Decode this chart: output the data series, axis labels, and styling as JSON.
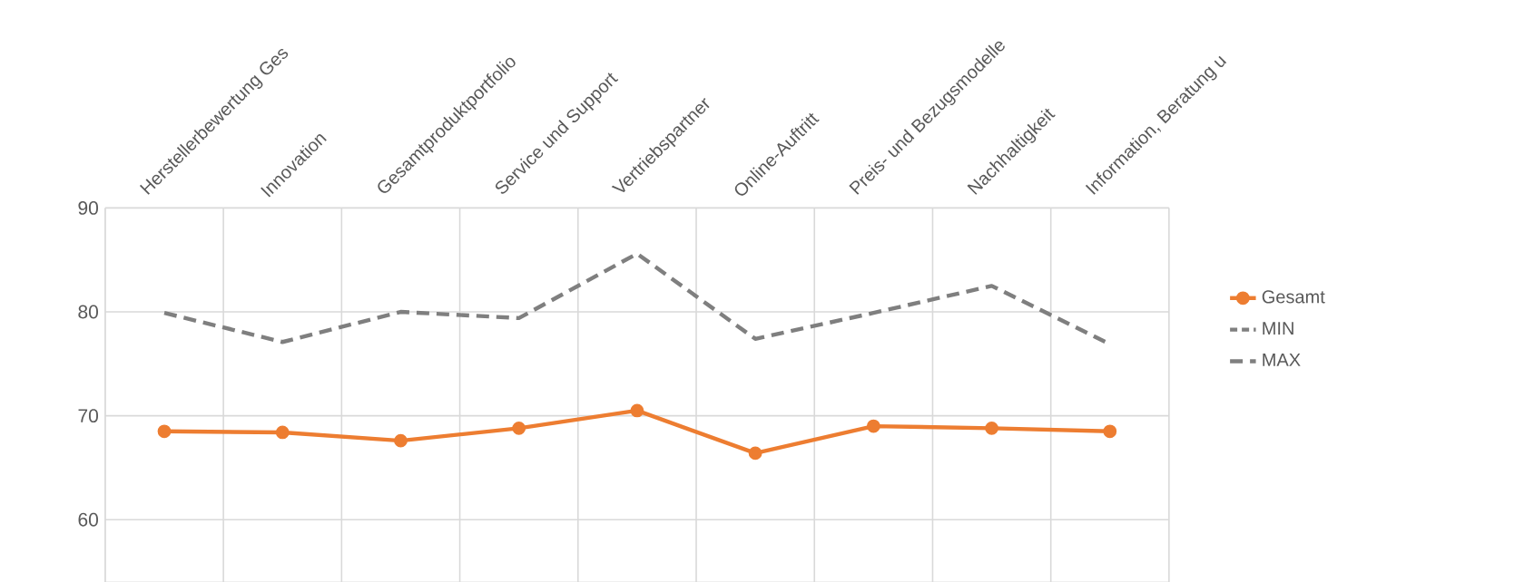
{
  "chart_data": {
    "type": "line",
    "categories": [
      "Herstellerbewertung Ges",
      "Innovation",
      "Gesamtproduktportfolio",
      "Service und Support",
      "Vertriebspartner",
      "Online-Auftritt",
      "Preis- und Bezugsmodelle",
      "Nachhaltigkeit",
      "Information, Beratung u"
    ],
    "series": [
      {
        "name": "Gesamt",
        "color": "#ed7d31",
        "marker": "circle",
        "line_style": "solid",
        "values": [
          68.5,
          68.4,
          67.6,
          68.8,
          70.5,
          66.4,
          69.0,
          68.8,
          68.5
        ]
      },
      {
        "name": "MIN",
        "color": "#7f7f7f",
        "marker": "none",
        "line_style": "dotted",
        "values": [
          null,
          null,
          null,
          null,
          null,
          null,
          null,
          null,
          null
        ]
      },
      {
        "name": "MAX",
        "color": "#7f7f7f",
        "marker": "none",
        "line_style": "dashed",
        "values": [
          79.9,
          77.1,
          80.0,
          79.4,
          85.6,
          77.4,
          79.9,
          82.5,
          76.9
        ]
      }
    ],
    "ylim": [
      54,
      90
    ],
    "yticks": [
      60,
      70,
      80,
      90
    ],
    "grid": true,
    "legend": "right"
  }
}
